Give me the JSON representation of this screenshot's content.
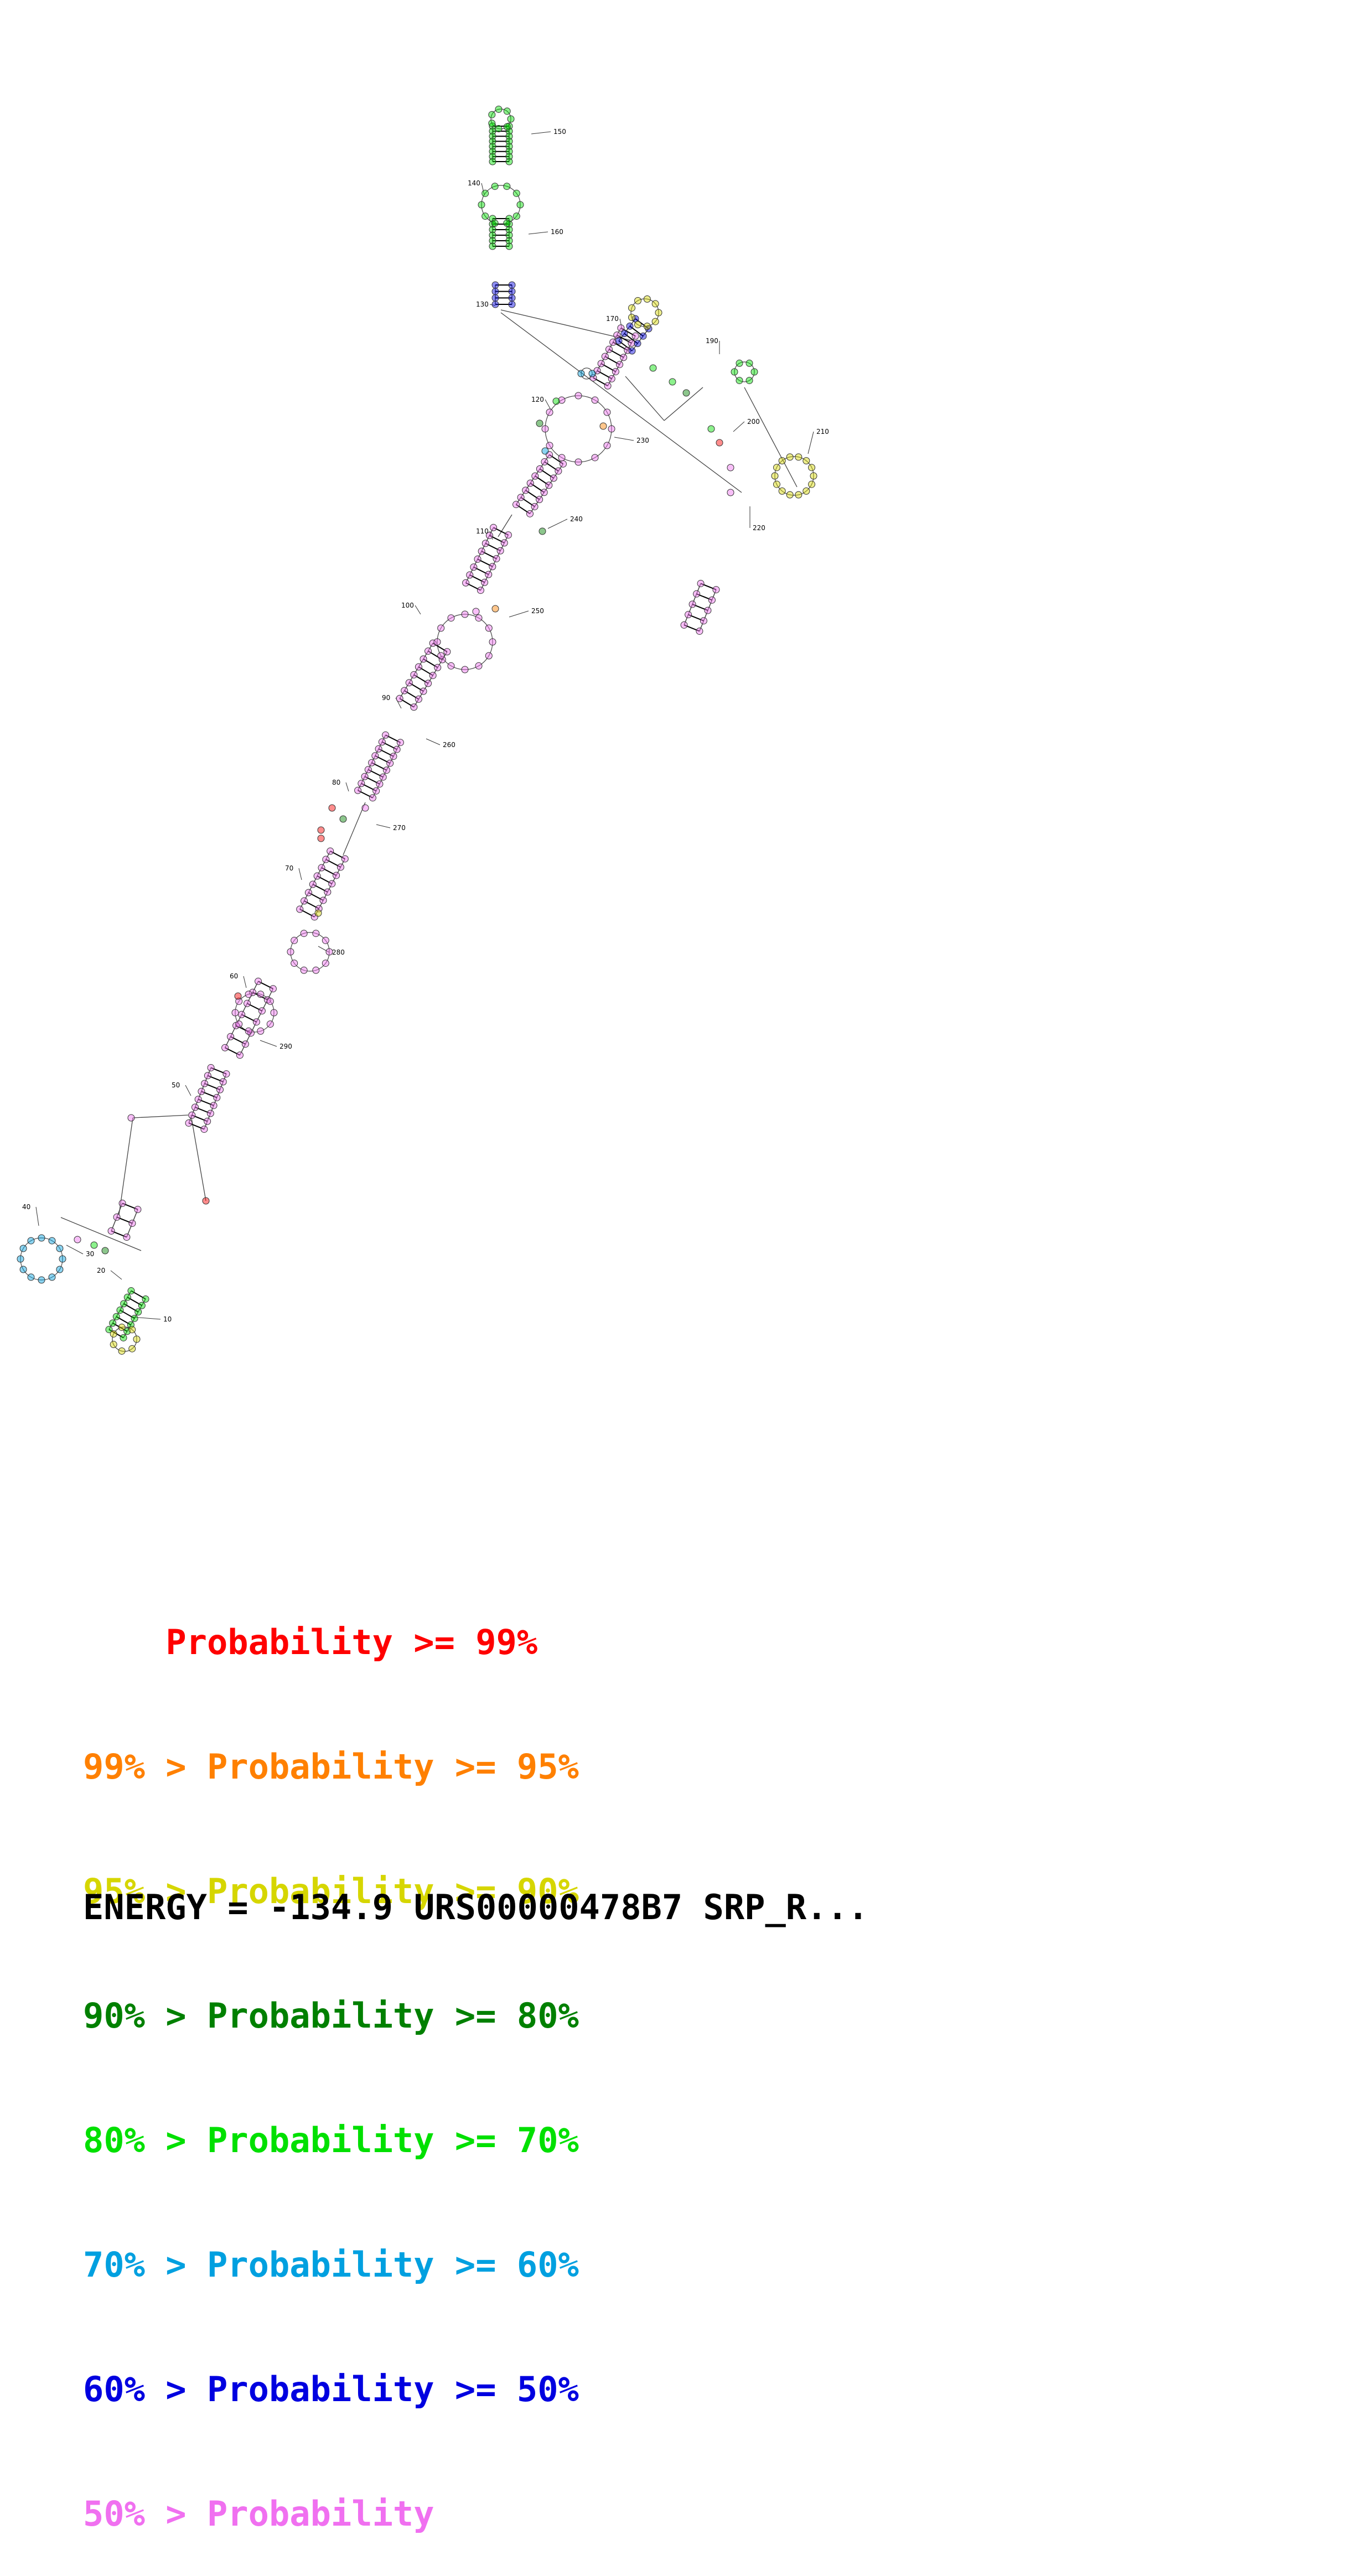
{
  "colors": {
    "p99": "#ff0000",
    "p95": "#ff8000",
    "p90": "#d6d600",
    "p80": "#008000",
    "p70": "#00e000",
    "p60": "#00a0e0",
    "p50": "#0000e0",
    "plt50": "#f070f0"
  },
  "structure": {
    "position_labels": [
      "10",
      "20",
      "30",
      "40",
      "50",
      "60",
      "70",
      "80",
      "90",
      "100",
      "110",
      "120",
      "130",
      "140",
      "150",
      "160",
      "170",
      "190",
      "200",
      "210",
      "220",
      "230",
      "240",
      "250",
      "260",
      "270",
      "280",
      "290"
    ]
  },
  "legend": [
    {
      "prefix": "    ",
      "text": "Probability >= 99%",
      "color_key": "p99"
    },
    {
      "prefix": "99% > ",
      "text": "Probability >= 95%",
      "color_key": "p95"
    },
    {
      "prefix": "95% > ",
      "text": "Probability >= 90%",
      "color_key": "p90"
    },
    {
      "prefix": "90% > ",
      "text": "Probability >= 80%",
      "color_key": "p80"
    },
    {
      "prefix": "80% > ",
      "text": "Probability >= 70%",
      "color_key": "p70"
    },
    {
      "prefix": "70% > ",
      "text": "Probability >= 60%",
      "color_key": "p60"
    },
    {
      "prefix": "60% > ",
      "text": "Probability >= 50%",
      "color_key": "p50"
    },
    {
      "prefix": "50% > ",
      "text": "Probability",
      "color_key": "plt50"
    }
  ],
  "footer": {
    "energy": "ENERGY = -134.9",
    "id": "URS00000478B7 SRP_R..."
  }
}
